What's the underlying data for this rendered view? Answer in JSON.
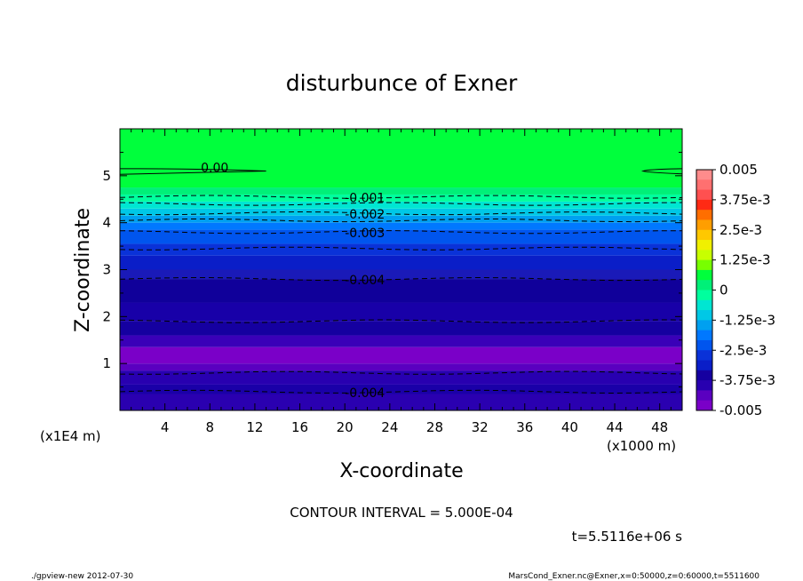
{
  "chart_data": {
    "type": "contour",
    "title": "disturbunce of Exner",
    "xlabel": "X-coordinate",
    "ylabel": "Z-coordinate",
    "x_unit": "(x1000 m)",
    "y_unit": "(x1E4 m)",
    "xlim": [
      0,
      50
    ],
    "ylim": [
      0,
      6
    ],
    "x_ticks": [
      "4",
      "8",
      "12",
      "16",
      "20",
      "24",
      "28",
      "32",
      "36",
      "40",
      "44",
      "48"
    ],
    "y_ticks": [
      "1",
      "2",
      "3",
      "4",
      "5"
    ],
    "contour_interval_text": "CONTOUR INTERVAL = 5.000E-04",
    "time_text": "t=5.5116e+06 s",
    "bands": [
      {
        "z0": 0.0,
        "z1": 0.35,
        "color": "#2a00b0"
      },
      {
        "z0": 0.35,
        "z1": 0.55,
        "color": "#1a00a8"
      },
      {
        "z0": 0.55,
        "z1": 0.85,
        "color": "#2800b0"
      },
      {
        "z0": 0.85,
        "z1": 1.0,
        "color": "#5a00c0"
      },
      {
        "z0": 1.0,
        "z1": 1.35,
        "color": "#7a00c8"
      },
      {
        "z0": 1.35,
        "z1": 1.6,
        "color": "#3a00b8"
      },
      {
        "z0": 1.6,
        "z1": 1.9,
        "color": "#1500a0"
      },
      {
        "z0": 1.9,
        "z1": 2.3,
        "color": "#1800a8"
      },
      {
        "z0": 2.3,
        "z1": 2.8,
        "color": "#10009a"
      },
      {
        "z0": 2.8,
        "z1": 3.0,
        "color": "#1a1ab8"
      },
      {
        "z0": 3.0,
        "z1": 3.3,
        "color": "#0a1ec8"
      },
      {
        "z0": 3.3,
        "z1": 3.55,
        "color": "#0a32d8"
      },
      {
        "z0": 3.55,
        "z1": 3.85,
        "color": "#0055ee"
      },
      {
        "z0": 3.85,
        "z1": 4.0,
        "color": "#0078ff"
      },
      {
        "z0": 4.0,
        "z1": 4.15,
        "color": "#00a0f0"
      },
      {
        "z0": 4.15,
        "z1": 4.3,
        "color": "#00c8e6"
      },
      {
        "z0": 4.3,
        "z1": 4.45,
        "color": "#00e6d2"
      },
      {
        "z0": 4.45,
        "z1": 4.6,
        "color": "#00ff9e"
      },
      {
        "z0": 4.6,
        "z1": 4.75,
        "color": "#00f078"
      },
      {
        "z0": 4.75,
        "z1": 6.0,
        "color": "#00ff3c"
      }
    ],
    "contour_lines": [
      {
        "z": 0.4,
        "label": "-0.004",
        "label_x": 20,
        "dashed": true
      },
      {
        "z": 0.8,
        "label": "",
        "label_x": 0,
        "dashed": true
      },
      {
        "z": 1.9,
        "label": "",
        "label_x": 0,
        "dashed": true
      },
      {
        "z": 2.8,
        "label": "-0.004",
        "label_x": 20,
        "dashed": true
      },
      {
        "z": 3.45,
        "label": "",
        "label_x": 0,
        "dashed": true
      },
      {
        "z": 3.8,
        "label": "-0.003",
        "label_x": 20,
        "dashed": true
      },
      {
        "z": 4.05,
        "label": "",
        "label_x": 0,
        "dashed": true
      },
      {
        "z": 4.2,
        "label": "-0.002",
        "label_x": 20,
        "dashed": true
      },
      {
        "z": 4.4,
        "label": "",
        "label_x": 0,
        "dashed": true
      },
      {
        "z": 4.55,
        "label": "-0.001",
        "label_x": 20,
        "dashed": true
      }
    ],
    "zero_contour_label": "0.00",
    "colorbar": {
      "levels": [
        "0.005",
        "3.75e-3",
        "2.5e-3",
        "1.25e-3",
        "0",
        "-1.25e-3",
        "-2.5e-3",
        "-3.75e-3",
        "-0.005"
      ],
      "colors": [
        "#ff8c8c",
        "#ff7070",
        "#ff5050",
        "#ff2a14",
        "#ff6e00",
        "#ff9e00",
        "#ffc800",
        "#f0f000",
        "#c8ff00",
        "#78ff00",
        "#00ff3c",
        "#00f078",
        "#00ff9e",
        "#00e6d2",
        "#00c8e6",
        "#00a0f0",
        "#0078ff",
        "#0055ee",
        "#0a32d8",
        "#0a1ec8",
        "#1500a0",
        "#2800b0",
        "#5a00c0",
        "#7a00c8"
      ]
    }
  },
  "footer": {
    "left": "./gpview-new   2012-07-30",
    "right": "MarsCond_Exner.nc@Exner,x=0:50000,z=0:60000,t=5511600"
  }
}
